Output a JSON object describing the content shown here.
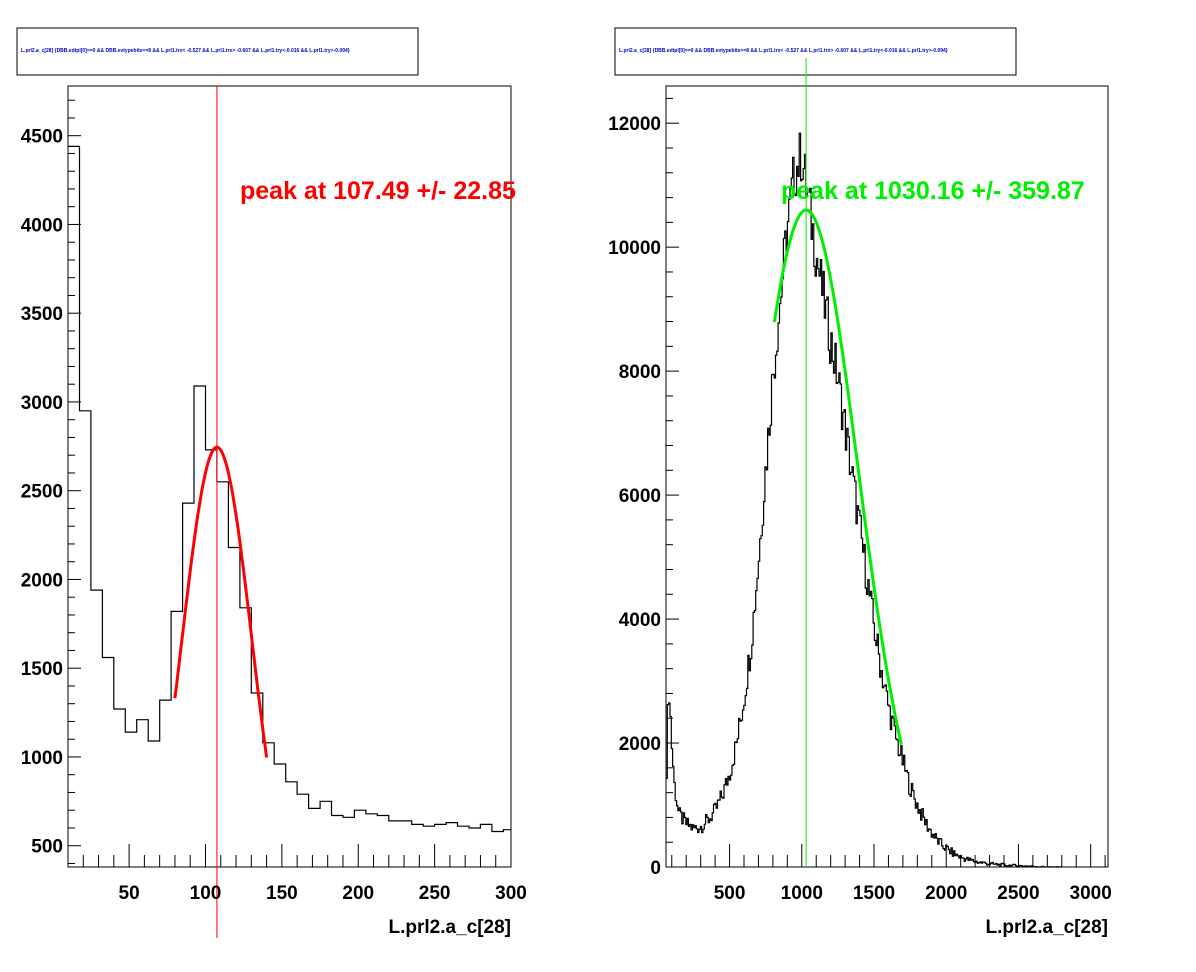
{
  "chart_data": [
    {
      "type": "histogram",
      "title": "L.prl2.a_c[28] {DBB.edtpl[0]==0 && DBB.evtypebits==8 &&  L.prl1.trx< -0.527 && L.prl1.trx> -0.607 && L.prl1.try<-0.016 && L.prl1.try>-0.094}",
      "xlabel": "L.prl2.a_c[28]",
      "ylabel": "",
      "xlim": [
        10,
        300
      ],
      "ylim": [
        380,
        4780
      ],
      "x_ticks": [
        50,
        100,
        150,
        200,
        250,
        300
      ],
      "y_ticks": [
        500,
        1000,
        1500,
        2000,
        2500,
        3000,
        3500,
        4000,
        4500
      ],
      "bin_width": 7.5,
      "x": [
        13.75,
        21.25,
        28.75,
        36.25,
        43.75,
        51.25,
        58.75,
        66.25,
        73.75,
        81.25,
        88.75,
        96.25,
        103.75,
        111.25,
        118.75,
        126.25,
        133.75,
        141.25,
        148.75,
        156.25,
        163.75,
        171.25,
        178.75,
        186.25,
        193.75,
        201.25,
        208.75,
        216.25,
        223.75,
        231.25,
        238.75,
        246.25,
        253.75,
        261.25,
        268.75,
        276.25,
        283.75,
        291.25,
        298.75
      ],
      "values": [
        4440,
        2950,
        1940,
        1560,
        1270,
        1140,
        1210,
        1090,
        1320,
        1820,
        2430,
        3090,
        2730,
        2550,
        2180,
        1840,
        1360,
        1080,
        960,
        860,
        790,
        710,
        750,
        670,
        660,
        700,
        680,
        670,
        640,
        640,
        620,
        610,
        620,
        630,
        610,
        600,
        620,
        580,
        590
      ],
      "fit": {
        "type": "gaussian",
        "mean": 107.49,
        "sigma": 22.85,
        "amplitude": 2745,
        "range": [
          80,
          140
        ],
        "color": "#ff0000"
      },
      "peak_line_x": 107.49,
      "annotation": "peak at 107.49 +/- 22.85"
    },
    {
      "type": "histogram",
      "title": "L.prl2.a_c[28] {DBB.edtpl[0]==0 && DBB.evtypebits==8 &&  L.prl1.trx< -0.527 && L.prl1.trx> -0.607 && L.prl1.try<-0.016 && L.prl1.try>-0.094}",
      "xlabel": "L.prl2.a_c[28]",
      "ylabel": "",
      "xlim": [
        60,
        3120
      ],
      "ylim": [
        0,
        12600
      ],
      "x_ticks": [
        500,
        1000,
        1500,
        2000,
        2500,
        3000
      ],
      "y_ticks": [
        0,
        2000,
        4000,
        6000,
        8000,
        10000,
        12000
      ],
      "x": [
        60,
        80,
        100,
        120,
        150,
        200,
        250,
        300,
        350,
        400,
        450,
        500,
        550,
        600,
        650,
        700,
        750,
        800,
        850,
        900,
        950,
        1000,
        1050,
        1100,
        1150,
        1200,
        1250,
        1300,
        1350,
        1400,
        1450,
        1500,
        1550,
        1600,
        1650,
        1700,
        1750,
        1800,
        1850,
        1900,
        1950,
        2000,
        2050,
        2100,
        2150,
        2200,
        2250,
        2300,
        2400,
        2500,
        2600,
        2700
      ],
      "values": [
        1200,
        3000,
        2000,
        1300,
        850,
        700,
        620,
        650,
        750,
        900,
        1150,
        1500,
        2000,
        2700,
        3600,
        4900,
        6400,
        7900,
        9100,
        10300,
        11200,
        11500,
        10700,
        9900,
        9200,
        8500,
        7900,
        7100,
        6300,
        5500,
        4700,
        3900,
        3200,
        2600,
        2100,
        1700,
        1300,
        1000,
        750,
        550,
        400,
        300,
        220,
        160,
        120,
        90,
        70,
        50,
        30,
        20,
        10,
        0
      ],
      "fit": {
        "type": "gaussian",
        "mean": 1030.16,
        "sigma": 359.87,
        "amplitude": 10600,
        "range": [
          810,
          1690
        ],
        "color": "#00ee00"
      },
      "peak_line_x": 1030.16,
      "annotation": "peak at 1030.16 +/- 359.87"
    }
  ]
}
